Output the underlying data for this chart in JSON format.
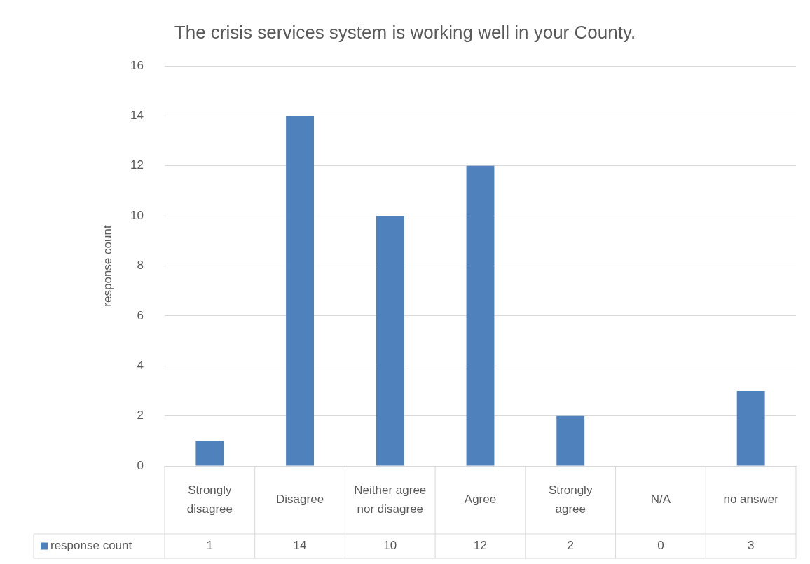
{
  "chart_data": {
    "type": "bar",
    "title": "The crisis services system is working well in your County.",
    "ylabel": "response count",
    "categories": [
      "Strongly disagree",
      "Disagree",
      "Neither agree nor disagree",
      "Agree",
      "Strongly agree",
      "N/A",
      "no answer"
    ],
    "series": [
      {
        "name": "response count",
        "color": "#4f81bd",
        "values": [
          1,
          14,
          10,
          12,
          2,
          0,
          3
        ]
      }
    ],
    "ylim": [
      0,
      16
    ],
    "yticks": [
      0,
      2,
      4,
      6,
      8,
      10,
      12,
      14,
      16
    ],
    "grid": "y",
    "legend": "bottom",
    "data_labels": true
  }
}
